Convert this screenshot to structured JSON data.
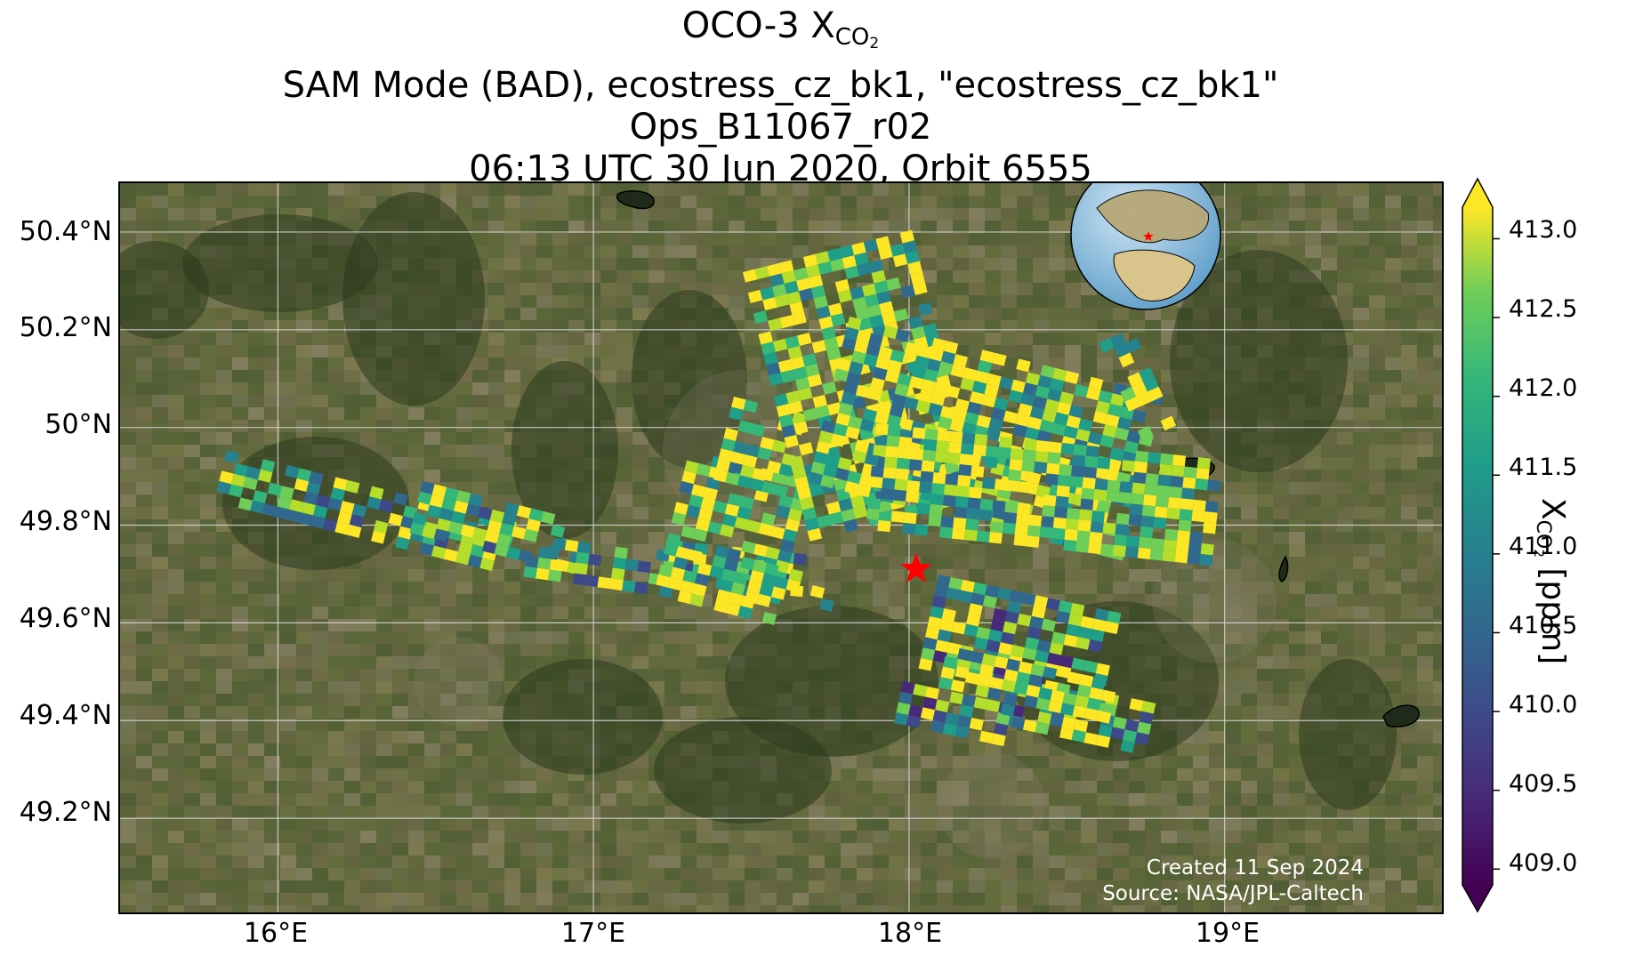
{
  "title": {
    "line1_prefix": "OCO-3 X",
    "line1_sub": "CO",
    "line1_subsub": "2",
    "line2": "SAM Mode (BAD), ecostress_cz_bk1, \"ecostress_cz_bk1\"",
    "line3": "Ops_B11067_r02",
    "line4": "06:13 UTC 30 Jun 2020, Orbit 6555"
  },
  "map": {
    "lat_ticks": [
      "50.4°N",
      "50.2°N",
      "50°N",
      "49.8°N",
      "49.6°N",
      "49.4°N",
      "49.2°N"
    ],
    "lon_ticks": [
      "16°E",
      "17°E",
      "18°E",
      "19°E"
    ],
    "target_marker": "red-star-icon",
    "inset": "globe-inset-icon"
  },
  "credit": {
    "line1": "Created 11 Sep 2024",
    "line2": "Source: NASA/JPL-Caltech"
  },
  "colorbar": {
    "label_prefix": "X",
    "label_sub": "CO",
    "label_subsub": "2",
    "label_suffix": " [ppm]",
    "ticks": [
      "413.0",
      "412.5",
      "412.0",
      "411.5",
      "411.0",
      "410.5",
      "410.0",
      "409.5",
      "409.0"
    ],
    "colormap": "viridis",
    "min": 408.9,
    "max": 413.2
  },
  "colors": {
    "grid": "#d9d9d9",
    "target_star": "#ff0000",
    "terrain_base": "#4a5a30"
  }
}
